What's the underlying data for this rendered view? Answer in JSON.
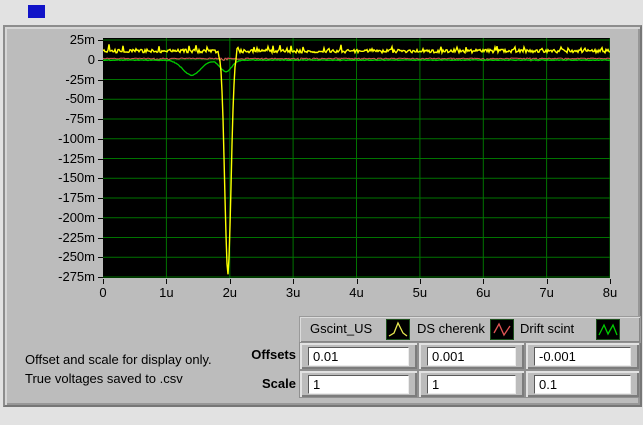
{
  "indicator": {
    "color": "#1113c8"
  },
  "chart": {
    "bg": "#000000",
    "grid_color": "#007300",
    "x_ticks_us": [
      0,
      1,
      2,
      3,
      4,
      5,
      6,
      7,
      8
    ],
    "x_tick_labels": [
      "0",
      "1u",
      "2u",
      "3u",
      "4u",
      "5u",
      "6u",
      "7u",
      "8u"
    ],
    "y_ticks_mV": [
      25,
      0,
      -25,
      -50,
      -75,
      -100,
      -125,
      -150,
      -175,
      -200,
      -225,
      -250,
      -275
    ],
    "y_tick_labels": [
      "25m",
      "0",
      "-25m",
      "-50m",
      "-75m",
      "-100m",
      "-125m",
      "-150m",
      "-175m",
      "-200m",
      "-225m",
      "-250m",
      "-275m"
    ]
  },
  "chart_data": {
    "type": "line",
    "title": "",
    "xlabel": "",
    "ylabel": "",
    "grid": true,
    "legend_position": "bottom-right",
    "x_range": [
      0,
      8e-06
    ],
    "y_range": [
      -0.275,
      0.025
    ],
    "x_tick_labels": [
      "0",
      "1u",
      "2u",
      "3u",
      "4u",
      "5u",
      "6u",
      "7u",
      "8u"
    ],
    "y_tick_labels": [
      "25m",
      "0",
      "-25m",
      "-50m",
      "-75m",
      "-100m",
      "-125m",
      "-150m",
      "-175m",
      "-200m",
      "-225m",
      "-250m",
      "-275m"
    ],
    "series": [
      {
        "name": "Gscint_US",
        "color": "#ffff00",
        "baseline_mV": 11,
        "noise_mV": 2.2,
        "spike_prob": 0.12,
        "spike_mV": 7,
        "pulses": [
          {
            "center_us": 1.97,
            "depth_mV": -281,
            "sigma_us": 0.05
          }
        ],
        "description": "noisy band near +10m, sharp negative pulse to about -270m at 2u"
      },
      {
        "name": "DS cherenk",
        "color": "#e05555",
        "baseline_mV": 1.5,
        "noise_mV": 0.7,
        "spike_prob": 0.08,
        "spike_mV": -3,
        "pulses": [],
        "description": "flat trace just above 0"
      },
      {
        "name": "Drift scint",
        "color": "#00cc00",
        "baseline_mV": -0.5,
        "noise_mV": 0.4,
        "spike_prob": 0,
        "spike_mV": 0,
        "pulses": [
          {
            "center_us": 1.4,
            "depth_mV": -19,
            "sigma_us": 0.14
          },
          {
            "center_us": 1.94,
            "depth_mV": -14.5,
            "sigma_us": 0.09
          }
        ],
        "description": "flat near 0 with dips to about -20m at 1.4u and -15m at 1.95u"
      }
    ]
  },
  "legend": {
    "items": [
      {
        "label": "Gscint_US",
        "color": "#e8e850",
        "glyph": "peak"
      },
      {
        "label": "DS cherenk",
        "color": "#e05555",
        "glyph": "zigzag"
      },
      {
        "label": "Drift scint",
        "color": "#00cc00",
        "glyph": "zigzag2"
      }
    ]
  },
  "controls": {
    "offsets_label": "Offsets",
    "scale_label": "Scale",
    "offsets": [
      "0.01",
      "0.001",
      "-0.001"
    ],
    "scale": [
      "1",
      "1",
      "0.1"
    ]
  },
  "note": {
    "line1": "Offset and scale for display only.",
    "line2": "True voltages saved to .csv"
  }
}
